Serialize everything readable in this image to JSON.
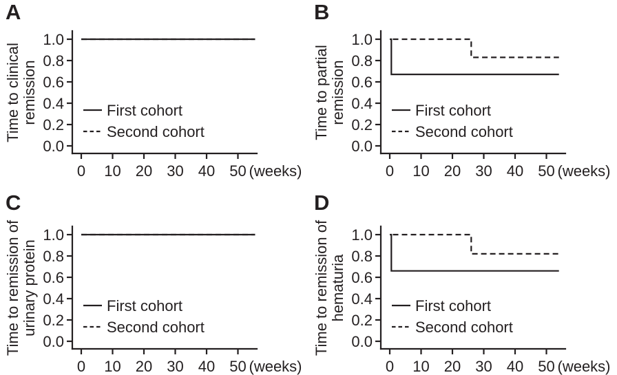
{
  "figure": {
    "background": "#ffffff",
    "ink_color": "#231f20",
    "x_unit_label": "(weeks)",
    "legend_items": [
      {
        "label": "First cohort",
        "line_style": "solid"
      },
      {
        "label": "Second cohort",
        "line_style": "dashed"
      }
    ],
    "panels": [
      {
        "letter": "A",
        "ylabel_lines": [
          "Time to clinical",
          "remission"
        ]
      },
      {
        "letter": "B",
        "ylabel_lines": [
          "Time to partial",
          "remission"
        ]
      },
      {
        "letter": "C",
        "ylabel_lines": [
          "Time to remission of",
          "urinary protein"
        ]
      },
      {
        "letter": "D",
        "ylabel_lines": [
          "Time to remission of",
          "hematuria"
        ]
      }
    ]
  },
  "chart_data": [
    {
      "type": "line",
      "subtype": "kaplan-meier-step",
      "panel": "A",
      "title": "",
      "xlabel": "(weeks)",
      "ylabel": "Time to clinical remission",
      "xlim": [
        0,
        56
      ],
      "ylim": [
        0.0,
        1.0
      ],
      "x_ticks": [
        0,
        10,
        20,
        30,
        40,
        50
      ],
      "y_ticks": [
        0.0,
        0.2,
        0.4,
        0.6,
        0.8,
        1.0
      ],
      "grid": false,
      "legend_position": "inside left, mid-height",
      "series": [
        {
          "name": "First cohort",
          "line": "solid",
          "points": [
            [
              0,
              1.0
            ],
            [
              55.5,
              1.0
            ]
          ]
        },
        {
          "name": "Second cohort",
          "line": "dashed",
          "points": [
            [
              0,
              1.0
            ],
            [
              55.5,
              1.0
            ]
          ],
          "note": "coincides with first cohort at 1.0, hidden beneath solid line"
        }
      ]
    },
    {
      "type": "line",
      "subtype": "kaplan-meier-step",
      "panel": "B",
      "title": "",
      "xlabel": "(weeks)",
      "ylabel": "Time to partial remission",
      "xlim": [
        0,
        56
      ],
      "ylim": [
        0.0,
        1.0
      ],
      "x_ticks": [
        0,
        10,
        20,
        30,
        40,
        50
      ],
      "y_ticks": [
        0.0,
        0.2,
        0.4,
        0.6,
        0.8,
        1.0
      ],
      "grid": false,
      "legend_position": "inside left, mid-height",
      "series": [
        {
          "name": "First cohort",
          "line": "solid",
          "points": [
            [
              0,
              1.0
            ],
            [
              0.5,
              1.0
            ],
            [
              0.5,
              0.67
            ],
            [
              54,
              0.67
            ]
          ]
        },
        {
          "name": "Second cohort",
          "line": "dashed",
          "points": [
            [
              1,
              1.0
            ],
            [
              26,
              1.0
            ],
            [
              26,
              0.83
            ],
            [
              54,
              0.83
            ]
          ]
        }
      ]
    },
    {
      "type": "line",
      "subtype": "kaplan-meier-step",
      "panel": "C",
      "title": "",
      "xlabel": "(weeks)",
      "ylabel": "Time to remission of urinary protein",
      "xlim": [
        0,
        56
      ],
      "ylim": [
        0.0,
        1.0
      ],
      "x_ticks": [
        0,
        10,
        20,
        30,
        40,
        50
      ],
      "y_ticks": [
        0.0,
        0.2,
        0.4,
        0.6,
        0.8,
        1.0
      ],
      "grid": false,
      "legend_position": "inside left, mid-height",
      "series": [
        {
          "name": "First cohort",
          "line": "solid",
          "points": [
            [
              0,
              1.0
            ],
            [
              55.5,
              1.0
            ]
          ]
        },
        {
          "name": "Second cohort",
          "line": "dashed",
          "points": [
            [
              0,
              1.0
            ],
            [
              55.5,
              1.0
            ]
          ],
          "note": "coincides with first cohort at 1.0, hidden beneath solid line"
        }
      ]
    },
    {
      "type": "line",
      "subtype": "kaplan-meier-step",
      "panel": "D",
      "title": "",
      "xlabel": "(weeks)",
      "ylabel": "Time to remission of hematuria",
      "xlim": [
        0,
        56
      ],
      "ylim": [
        0.0,
        1.0
      ],
      "x_ticks": [
        0,
        10,
        20,
        30,
        40,
        50
      ],
      "y_ticks": [
        0.0,
        0.2,
        0.4,
        0.6,
        0.8,
        1.0
      ],
      "grid": false,
      "legend_position": "inside left, mid-height",
      "series": [
        {
          "name": "First cohort",
          "line": "solid",
          "points": [
            [
              0,
              1.0
            ],
            [
              0.5,
              1.0
            ],
            [
              0.5,
              0.66
            ],
            [
              54,
              0.66
            ]
          ]
        },
        {
          "name": "Second cohort",
          "line": "dashed",
          "points": [
            [
              1,
              1.0
            ],
            [
              26,
              1.0
            ],
            [
              26,
              0.82
            ],
            [
              54,
              0.82
            ]
          ]
        }
      ]
    }
  ]
}
